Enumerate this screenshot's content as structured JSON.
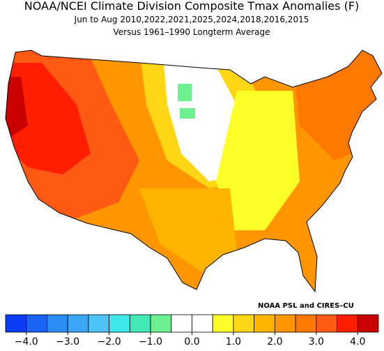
{
  "header": {
    "title": "NOAA/NCEI Climate Division Composite Tmax Anomalies (F)",
    "subtitle": "Jun to Aug  2010,2022,2021,2025,2024,2018,2016,2015",
    "baseline": "Versus 1961–1990 Longterm Average"
  },
  "credit": "NOAA PSL and CIRES–CU",
  "colorbar": {
    "range": [
      -4.5,
      4.5
    ],
    "colors": [
      "#0a3cf5",
      "#1a64f5",
      "#2b8cf5",
      "#3aa6f5",
      "#4cc2f5",
      "#3ce8e8",
      "#44e8b8",
      "#6cf090",
      "#ffffff",
      "#ffffff",
      "#ffff28",
      "#ffd614",
      "#ffb400",
      "#ff9600",
      "#ff7800",
      "#ff5a14",
      "#ff1e00",
      "#c80000"
    ],
    "ticks": [
      {
        "value": -4,
        "label": "−4.0"
      },
      {
        "value": -3,
        "label": "−3.0"
      },
      {
        "value": -2,
        "label": "−2.0"
      },
      {
        "value": -1,
        "label": "−1.0"
      },
      {
        "value": 0,
        "label": "0.0"
      },
      {
        "value": 1,
        "label": "1.0"
      },
      {
        "value": 2,
        "label": "2.0"
      },
      {
        "value": 3,
        "label": "3.0"
      },
      {
        "value": 4,
        "label": "4.0"
      }
    ]
  }
}
